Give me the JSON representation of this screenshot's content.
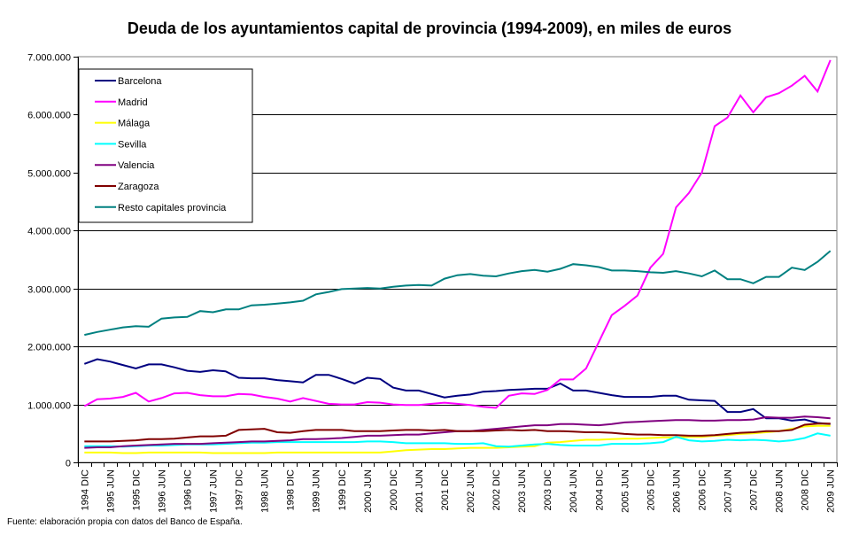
{
  "chart_data": {
    "type": "line",
    "title": "Deuda de los ayuntamientos capital de provincia (1994-2009), en miles de euros",
    "xlabel": "",
    "ylabel": "",
    "ylim": [
      0,
      7000000
    ],
    "yticks": [
      0,
      1000000,
      2000000,
      3000000,
      4000000,
      5000000,
      6000000,
      7000000
    ],
    "ytick_labels": [
      "0",
      "1.000.000",
      "2.000.000",
      "3.000.000",
      "4.000.000",
      "5.000.000",
      "6.000.000",
      "7.000.000"
    ],
    "grid": true,
    "legend_position": "top-left",
    "x": [
      "1994 DIC",
      "1995 MAR",
      "1995 JUN",
      "1995 SEP",
      "1995 DIC",
      "1996 MAR",
      "1996 JUN",
      "1996 SEP",
      "1996 DIC",
      "1997 MAR",
      "1997 JUN",
      "1997 SEP",
      "1997 DIC",
      "1998 MAR",
      "1998 JUN",
      "1998 SEP",
      "1998 DIC",
      "1999 MAR",
      "1999 JUN",
      "1999 SEP",
      "1999 DIC",
      "2000 MAR",
      "2000 JUN",
      "2000 SEP",
      "2000 DIC",
      "2001 MAR",
      "2001 JUN",
      "2001 SEP",
      "2001 DIC",
      "2002 MAR",
      "2002 JUN",
      "2002 SEP",
      "2002 DIC",
      "2003 MAR",
      "2003 JUN",
      "2003 SEP",
      "2003 DIC",
      "2004 MAR",
      "2004 JUN",
      "2004 SEP",
      "2004 DIC",
      "2005 MAR",
      "2005 JUN",
      "2005 SEP",
      "2005 DIC",
      "2006 MAR",
      "2006 JUN",
      "2006 SEP",
      "2006 DIC",
      "2007 MAR",
      "2007 JUN",
      "2007 SEP",
      "2007 DIC",
      "2008 MAR",
      "2008 JUN",
      "2008 SEP",
      "2008 DIC",
      "2009 MAR",
      "2009 JUN"
    ],
    "x_tick_labels": [
      "1994 DIC",
      "1995 JUN",
      "1995 DIC",
      "1996 JUN",
      "1996 DIC",
      "1997 JUN",
      "1997 DIC",
      "1998 JUN",
      "1998 DIC",
      "1999 JUN",
      "1999 DIC",
      "2000 JUN",
      "2000 DIC",
      "2001 JUN",
      "2001 DIC",
      "2002 JUN",
      "2002 DIC",
      "2003 JUN",
      "2003 DIC",
      "2004 JUN",
      "2004 DIC",
      "2005 JUN",
      "2005 DIC",
      "2006 JUN",
      "2006 DIC",
      "2007 JUN",
      "2007 DIC",
      "2008 JUN",
      "2008 DIC",
      "2009 JUN"
    ],
    "series": [
      {
        "name": "Barcelona",
        "color": "#000080",
        "values": [
          1700000,
          1780000,
          1740000,
          1680000,
          1620000,
          1690000,
          1690000,
          1640000,
          1580000,
          1560000,
          1590000,
          1570000,
          1460000,
          1450000,
          1450000,
          1420000,
          1400000,
          1380000,
          1510000,
          1510000,
          1440000,
          1360000,
          1460000,
          1440000,
          1290000,
          1240000,
          1240000,
          1180000,
          1120000,
          1150000,
          1170000,
          1220000,
          1230000,
          1250000,
          1260000,
          1270000,
          1270000,
          1360000,
          1240000,
          1240000,
          1200000,
          1160000,
          1130000,
          1130000,
          1130000,
          1150000,
          1150000,
          1080000,
          1070000,
          1060000,
          870000,
          870000,
          920000,
          760000,
          760000,
          720000,
          740000,
          680000,
          660000
        ]
      },
      {
        "name": "Madrid",
        "color": "#FF00FF",
        "values": [
          970000,
          1090000,
          1100000,
          1130000,
          1200000,
          1050000,
          1110000,
          1190000,
          1200000,
          1160000,
          1140000,
          1140000,
          1180000,
          1170000,
          1130000,
          1100000,
          1050000,
          1110000,
          1060000,
          1010000,
          1000000,
          1000000,
          1040000,
          1030000,
          1000000,
          990000,
          990000,
          1010000,
          1030000,
          1010000,
          990000,
          960000,
          940000,
          1150000,
          1190000,
          1180000,
          1250000,
          1430000,
          1430000,
          1620000,
          2080000,
          2540000,
          2700000,
          2880000,
          3360000,
          3600000,
          4400000,
          4650000,
          5000000,
          5800000,
          5950000,
          6330000,
          6040000,
          6300000,
          6370000,
          6500000,
          6670000,
          6400000,
          6940000
        ]
      },
      {
        "name": "Málaga",
        "color": "#FFFF00",
        "values": [
          170000,
          170000,
          170000,
          160000,
          160000,
          170000,
          170000,
          170000,
          170000,
          170000,
          160000,
          160000,
          160000,
          160000,
          160000,
          170000,
          170000,
          170000,
          170000,
          170000,
          170000,
          170000,
          170000,
          170000,
          190000,
          210000,
          220000,
          230000,
          230000,
          240000,
          250000,
          250000,
          250000,
          260000,
          270000,
          280000,
          340000,
          350000,
          370000,
          390000,
          390000,
          400000,
          410000,
          410000,
          420000,
          430000,
          430000,
          440000,
          440000,
          460000,
          470000,
          490000,
          500000,
          520000,
          540000,
          580000,
          620000,
          630000,
          630000
        ]
      },
      {
        "name": "Sevilla",
        "color": "#00FFFF",
        "values": [
          280000,
          280000,
          280000,
          270000,
          280000,
          290000,
          290000,
          300000,
          310000,
          310000,
          310000,
          320000,
          330000,
          340000,
          340000,
          350000,
          350000,
          350000,
          350000,
          350000,
          350000,
          350000,
          360000,
          360000,
          350000,
          330000,
          330000,
          330000,
          330000,
          320000,
          320000,
          330000,
          280000,
          270000,
          290000,
          310000,
          320000,
          300000,
          290000,
          290000,
          290000,
          320000,
          320000,
          320000,
          330000,
          350000,
          440000,
          380000,
          360000,
          370000,
          390000,
          380000,
          390000,
          380000,
          360000,
          380000,
          420000,
          500000,
          460000
        ]
      },
      {
        "name": "Valencia",
        "color": "#800080",
        "values": [
          250000,
          260000,
          260000,
          280000,
          290000,
          300000,
          310000,
          320000,
          320000,
          320000,
          330000,
          340000,
          350000,
          360000,
          360000,
          370000,
          380000,
          400000,
          400000,
          410000,
          420000,
          440000,
          460000,
          460000,
          470000,
          480000,
          480000,
          500000,
          520000,
          540000,
          540000,
          560000,
          580000,
          600000,
          620000,
          640000,
          640000,
          660000,
          660000,
          650000,
          640000,
          660000,
          690000,
          700000,
          710000,
          720000,
          730000,
          730000,
          720000,
          720000,
          730000,
          730000,
          740000,
          780000,
          770000,
          770000,
          790000,
          780000,
          760000
        ]
      },
      {
        "name": "Zaragoza",
        "color": "#800000",
        "values": [
          360000,
          360000,
          360000,
          370000,
          380000,
          400000,
          400000,
          410000,
          430000,
          450000,
          450000,
          460000,
          560000,
          570000,
          580000,
          520000,
          510000,
          540000,
          560000,
          560000,
          560000,
          540000,
          540000,
          540000,
          550000,
          560000,
          560000,
          550000,
          560000,
          540000,
          540000,
          540000,
          550000,
          560000,
          550000,
          560000,
          540000,
          540000,
          530000,
          520000,
          520000,
          510000,
          490000,
          480000,
          480000,
          470000,
          470000,
          460000,
          460000,
          470000,
          490000,
          510000,
          520000,
          540000,
          540000,
          560000,
          650000,
          670000,
          670000
        ]
      },
      {
        "name": "Resto capitales provincia",
        "color": "#008080",
        "values": [
          2200000,
          2250000,
          2290000,
          2330000,
          2350000,
          2340000,
          2480000,
          2500000,
          2510000,
          2610000,
          2590000,
          2640000,
          2640000,
          2710000,
          2720000,
          2740000,
          2760000,
          2790000,
          2900000,
          2940000,
          2990000,
          3000000,
          3010000,
          3000000,
          3030000,
          3050000,
          3060000,
          3050000,
          3170000,
          3230000,
          3250000,
          3220000,
          3210000,
          3260000,
          3300000,
          3320000,
          3290000,
          3340000,
          3420000,
          3400000,
          3370000,
          3310000,
          3310000,
          3300000,
          3280000,
          3270000,
          3300000,
          3260000,
          3210000,
          3310000,
          3160000,
          3160000,
          3090000,
          3200000,
          3200000,
          3360000,
          3320000,
          3460000,
          3650000
        ]
      }
    ],
    "source": "Fuente: elaboración propia con datos del Banco de España."
  }
}
